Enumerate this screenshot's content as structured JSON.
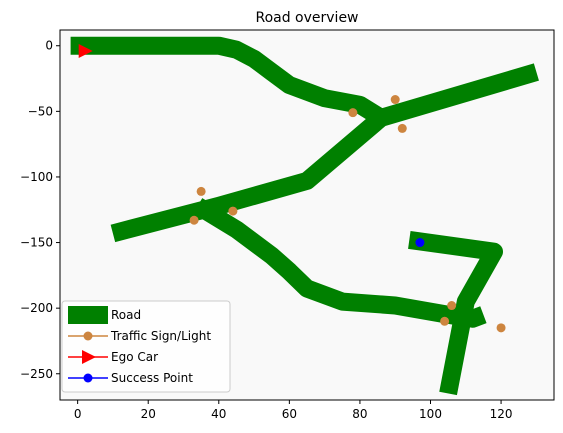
{
  "chart_data": {
    "type": "scatter",
    "title": "Road overview",
    "xlabel": "",
    "ylabel": "",
    "xlim": [
      -5,
      135
    ],
    "ylim": [
      -270,
      12
    ],
    "x_ticks": [
      0,
      20,
      40,
      60,
      80,
      100,
      120
    ],
    "y_ticks": [
      0,
      -50,
      -100,
      -150,
      -200,
      -250
    ],
    "grid": false,
    "legend_position": "lower-left",
    "legend": [
      {
        "label": "Road",
        "kind": "road"
      },
      {
        "label": "Traffic Sign/Light",
        "kind": "sign"
      },
      {
        "label": "Ego Car",
        "kind": "ego"
      },
      {
        "label": "Success Point",
        "kind": "success"
      }
    ],
    "colors": {
      "road": "#008000",
      "sign": "#cd853f",
      "ego": "#ff0000",
      "success": "#0000ff",
      "plot_background": "#f9f9f9"
    },
    "series": [
      {
        "name": "Road",
        "kind": "road",
        "lines": [
          [
            [
              -2,
              0
            ],
            [
              20,
              0
            ],
            [
              40,
              0
            ],
            [
              45,
              -3
            ],
            [
              50,
              -10
            ],
            [
              55,
              -20
            ],
            [
              60,
              -30
            ],
            [
              70,
              -40
            ],
            [
              80,
              -45
            ],
            [
              86,
              -55
            ]
          ],
          [
            [
              10,
              -143
            ],
            [
              40,
              -122
            ],
            [
              65,
              -103
            ],
            [
              86,
              -55
            ],
            [
              130,
              -20
            ]
          ],
          [
            [
              34,
              -122
            ],
            [
              45,
              -140
            ],
            [
              55,
              -160
            ],
            [
              60,
              -172
            ],
            [
              65,
              -185
            ],
            [
              75,
              -195
            ],
            [
              90,
              -198
            ],
            [
              105,
              -205
            ],
            [
              112,
              -208
            ],
            [
              115,
              -205
            ]
          ],
          [
            [
              94,
              -148
            ],
            [
              118,
              -157
            ],
            [
              110,
              -195
            ],
            [
              105,
              -265
            ]
          ]
        ]
      },
      {
        "name": "Traffic Sign/Light",
        "kind": "sign",
        "points": [
          [
            78,
            -51
          ],
          [
            90,
            -41
          ],
          [
            92,
            -63
          ],
          [
            35,
            -111
          ],
          [
            33,
            -133
          ],
          [
            44,
            -126
          ],
          [
            106,
            -198
          ],
          [
            104,
            -210
          ],
          [
            120,
            -215
          ]
        ]
      },
      {
        "name": "Ego Car",
        "kind": "ego",
        "points": [
          [
            2,
            -4
          ]
        ]
      },
      {
        "name": "Success Point",
        "kind": "success",
        "points": [
          [
            97,
            -150
          ]
        ]
      }
    ]
  }
}
